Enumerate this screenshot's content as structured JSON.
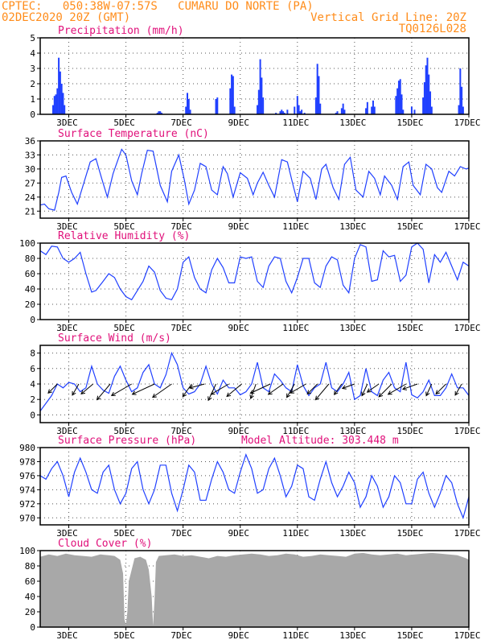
{
  "header": {
    "line1": "CPTEC:   050:38W-07:57S   CUMARU DO NORTE (PA)",
    "line2_left": "02DEC2020 20Z (GMT)",
    "line2_right": "Vertical Grid Line: 20Z",
    "line3_right": "TQ0126L028"
  },
  "colors": {
    "header": "#ff8c1a",
    "title": "#e0107a",
    "line": "#2040ff",
    "wind_arrow": "#000000",
    "cloud_fill": "#a8a8a8"
  },
  "x_axis": {
    "tick_labels": [
      "3DEC",
      "5DEC",
      "7DEC",
      "9DEC",
      "11DEC",
      "13DEC",
      "15DEC",
      "17DEC"
    ],
    "tick_days": [
      3,
      5,
      7,
      9,
      11,
      13,
      15,
      17
    ],
    "start_day": 2.0,
    "end_day": 17.0
  },
  "chart_data": [
    {
      "id": "precip",
      "type": "bar",
      "title": "Precipitation (mm/h)",
      "ylim": [
        0,
        5
      ],
      "yticks": [
        0,
        1,
        2,
        3,
        4,
        5
      ],
      "grid": true,
      "x": [
        2.45,
        2.5,
        2.55,
        2.6,
        2.65,
        2.7,
        2.75,
        2.8,
        2.85,
        6.1,
        6.15,
        6.2,
        6.25,
        7.1,
        7.15,
        7.2,
        7.25,
        8.15,
        8.2,
        8.65,
        8.7,
        8.75,
        8.8,
        9.6,
        9.65,
        9.7,
        9.75,
        9.8,
        10.25,
        10.4,
        10.45,
        10.5,
        10.55,
        10.65,
        10.9,
        11.0,
        11.05,
        11.1,
        11.15,
        11.25,
        11.65,
        11.7,
        11.75,
        11.8,
        12.35,
        12.4,
        12.55,
        12.6,
        12.65,
        13.4,
        13.45,
        13.6,
        13.65,
        13.7,
        14.45,
        14.5,
        14.55,
        14.6,
        14.65,
        14.7,
        15.0,
        15.1,
        15.4,
        15.45,
        15.5,
        15.55,
        15.6,
        15.65,
        15.7,
        16.65,
        16.7,
        16.75,
        16.8
      ],
      "values": [
        0.6,
        1.2,
        1.3,
        1.7,
        3.7,
        2.8,
        2.0,
        1.4,
        0.6,
        0.1,
        0.2,
        0.2,
        0.1,
        0.5,
        1.4,
        1.0,
        0.3,
        1.0,
        1.1,
        1.7,
        2.6,
        2.5,
        0.5,
        0.6,
        1.6,
        3.6,
        2.4,
        1.1,
        0.1,
        0.2,
        0.3,
        0.2,
        0.1,
        0.3,
        0.5,
        1.2,
        0.6,
        0.2,
        0.3,
        0.1,
        1.1,
        3.3,
        2.5,
        0.7,
        0.1,
        0.2,
        0.4,
        0.7,
        0.3,
        0.4,
        0.8,
        0.5,
        0.9,
        0.5,
        1.2,
        1.7,
        2.2,
        2.3,
        1.3,
        0.3,
        0.5,
        0.3,
        1.1,
        2.1,
        3.2,
        3.7,
        2.6,
        1.5,
        0.5,
        0.6,
        3.0,
        1.8,
        0.5
      ]
    },
    {
      "id": "temp",
      "type": "line",
      "title": "Surface Temperature (nC)",
      "ylim": [
        19.5,
        36
      ],
      "yticks": [
        21,
        24,
        27,
        30,
        33,
        36
      ],
      "grid": true,
      "x": [
        2.0,
        2.15,
        2.3,
        2.5,
        2.65,
        2.75,
        2.9,
        3.1,
        3.3,
        3.5,
        3.75,
        3.95,
        4.15,
        4.35,
        4.55,
        4.85,
        5.0,
        5.2,
        5.4,
        5.55,
        5.75,
        5.95,
        6.2,
        6.45,
        6.6,
        6.85,
        7.05,
        7.2,
        7.4,
        7.6,
        7.8,
        8.0,
        8.2,
        8.4,
        8.55,
        8.75,
        9.0,
        9.25,
        9.45,
        9.6,
        9.8,
        10.0,
        10.2,
        10.45,
        10.65,
        10.85,
        11.0,
        11.2,
        11.45,
        11.65,
        11.85,
        12.0,
        12.25,
        12.45,
        12.65,
        12.85,
        13.05,
        13.3,
        13.5,
        13.7,
        13.9,
        14.05,
        14.3,
        14.5,
        14.7,
        14.9,
        15.05,
        15.3,
        15.5,
        15.7,
        15.9,
        16.05,
        16.3,
        16.5,
        16.7,
        16.9,
        17.0
      ],
      "values": [
        22.3,
        22.5,
        21.5,
        21.2,
        25.0,
        28.2,
        28.5,
        25.0,
        22.5,
        26.5,
        31.5,
        32.2,
        28.0,
        24.0,
        29.0,
        34.2,
        33.0,
        27.5,
        24.5,
        29.0,
        34.0,
        33.8,
        26.5,
        23.0,
        29.5,
        33.0,
        27.5,
        22.5,
        25.5,
        31.2,
        30.5,
        25.5,
        24.5,
        30.5,
        29.0,
        24.0,
        29.2,
        28.0,
        24.5,
        27.0,
        29.3,
        26.5,
        24.0,
        32.0,
        31.5,
        26.5,
        23.0,
        29.5,
        28.0,
        23.5,
        30.0,
        31.0,
        26.0,
        23.5,
        31.0,
        32.5,
        25.5,
        24.0,
        29.5,
        28.0,
        24.5,
        28.5,
        26.5,
        23.5,
        30.5,
        31.5,
        26.5,
        24.5,
        31.0,
        30.0,
        26.0,
        25.0,
        29.5,
        28.5,
        30.5,
        30.0,
        30.2
      ]
    },
    {
      "id": "rh",
      "type": "line",
      "title": "Relative Humidity (%)",
      "ylim": [
        0,
        100
      ],
      "yticks": [
        0,
        20,
        40,
        60,
        80,
        100
      ],
      "grid": true,
      "x": [
        2.0,
        2.2,
        2.4,
        2.6,
        2.8,
        3.0,
        3.2,
        3.4,
        3.6,
        3.8,
        3.95,
        4.2,
        4.4,
        4.6,
        4.8,
        5.0,
        5.2,
        5.4,
        5.6,
        5.8,
        6.0,
        6.2,
        6.4,
        6.6,
        6.8,
        7.0,
        7.2,
        7.4,
        7.6,
        7.8,
        8.0,
        8.2,
        8.4,
        8.6,
        8.8,
        9.0,
        9.2,
        9.4,
        9.6,
        9.8,
        10.0,
        10.2,
        10.4,
        10.6,
        10.8,
        11.0,
        11.2,
        11.4,
        11.6,
        11.8,
        12.0,
        12.2,
        12.4,
        12.6,
        12.8,
        13.0,
        13.2,
        13.4,
        13.6,
        13.8,
        14.0,
        14.2,
        14.4,
        14.6,
        14.8,
        15.0,
        15.2,
        15.4,
        15.6,
        15.8,
        16.0,
        16.2,
        16.4,
        16.6,
        16.8,
        17.0
      ],
      "values": [
        90,
        85,
        96,
        95,
        80,
        75,
        80,
        88,
        60,
        36,
        38,
        50,
        60,
        55,
        40,
        30,
        26,
        38,
        50,
        70,
        62,
        38,
        28,
        26,
        40,
        75,
        82,
        55,
        40,
        35,
        65,
        80,
        68,
        48,
        48,
        82,
        80,
        82,
        50,
        42,
        70,
        82,
        80,
        50,
        35,
        55,
        80,
        80,
        48,
        42,
        70,
        82,
        78,
        45,
        35,
        80,
        98,
        95,
        50,
        52,
        90,
        82,
        84,
        50,
        58,
        95,
        100,
        92,
        48,
        85,
        75,
        88,
        70,
        52,
        75,
        70
      ]
    },
    {
      "id": "wind",
      "type": "line",
      "title": "Surface Wind (m/s)",
      "ylim": [
        -1,
        9
      ],
      "yticks": [
        0,
        2,
        4,
        6,
        8
      ],
      "grid": true,
      "x": [
        2.0,
        2.2,
        2.4,
        2.6,
        2.8,
        3.0,
        3.2,
        3.4,
        3.6,
        3.8,
        4.0,
        4.2,
        4.4,
        4.6,
        4.8,
        5.0,
        5.2,
        5.4,
        5.6,
        5.8,
        6.0,
        6.2,
        6.4,
        6.6,
        6.8,
        7.0,
        7.2,
        7.4,
        7.6,
        7.8,
        8.0,
        8.2,
        8.4,
        8.6,
        8.8,
        9.0,
        9.2,
        9.4,
        9.6,
        9.8,
        10.0,
        10.2,
        10.4,
        10.6,
        10.8,
        11.0,
        11.2,
        11.4,
        11.6,
        11.8,
        12.0,
        12.2,
        12.4,
        12.6,
        12.8,
        13.0,
        13.2,
        13.4,
        13.6,
        13.8,
        14.0,
        14.2,
        14.4,
        14.6,
        14.8,
        15.0,
        15.2,
        15.4,
        15.6,
        15.8,
        16.0,
        16.2,
        16.4,
        16.6,
        16.8,
        17.0
      ],
      "values": [
        0.5,
        1.5,
        2.5,
        4.0,
        3.5,
        4.2,
        4.0,
        3.0,
        3.5,
        6.3,
        4.0,
        3.2,
        2.8,
        5.0,
        6.3,
        4.5,
        3.0,
        3.5,
        5.5,
        6.5,
        4.0,
        3.5,
        5.2,
        8.0,
        6.5,
        3.5,
        2.7,
        3.0,
        4.0,
        6.3,
        4.0,
        2.7,
        4.5,
        3.5,
        3.5,
        2.6,
        3.0,
        4.0,
        6.8,
        3.5,
        3.0,
        5.3,
        4.5,
        3.5,
        3.0,
        6.5,
        3.8,
        2.5,
        3.5,
        4.0,
        6.8,
        3.5,
        3.0,
        4.0,
        5.5,
        2.0,
        2.5,
        6.0,
        3.0,
        2.5,
        4.5,
        5.5,
        3.5,
        3.0,
        6.8,
        2.6,
        2.2,
        3.0,
        4.5,
        2.5,
        2.5,
        3.5,
        5.3,
        3.5,
        3.5,
        2.5
      ],
      "arrow_x": [
        2.6,
        3.35,
        3.85,
        4.45,
        5.2,
        6.0,
        6.6,
        7.3,
        7.75,
        8.15,
        8.6,
        9.05,
        9.55,
        10.05,
        10.5,
        10.9,
        11.3,
        11.7,
        12.1,
        12.55,
        13.0,
        13.45,
        13.85,
        14.3,
        14.8,
        15.2,
        15.7,
        16.2,
        16.75
      ],
      "arrow_dir": [
        45,
        60,
        40,
        50,
        30,
        25,
        35,
        55,
        15,
        65,
        30,
        40,
        70,
        25,
        35,
        60,
        30,
        45,
        50,
        55,
        20,
        65,
        35,
        45,
        30,
        20,
        65,
        45,
        60
      ],
      "arrow_len": [
        0.5,
        0.5,
        0.6,
        0.8,
        0.9,
        0.95,
        0.9,
        0.6,
        0.6,
        0.7,
        0.8,
        0.75,
        0.6,
        0.85,
        0.7,
        0.6,
        0.7,
        0.55,
        0.8,
        0.5,
        0.5,
        0.5,
        0.55,
        0.7,
        0.8,
        0.6,
        0.5,
        0.55,
        0.5
      ]
    },
    {
      "id": "pressure",
      "type": "line",
      "title": "Surface Pressure (hPa)",
      "annotation": "Model Altitude: 303.448 m",
      "ylim": [
        969,
        980
      ],
      "yticks": [
        970,
        972,
        974,
        976,
        978,
        980
      ],
      "grid": true,
      "x": [
        2.0,
        2.2,
        2.4,
        2.6,
        2.8,
        3.0,
        3.2,
        3.4,
        3.6,
        3.8,
        4.0,
        4.2,
        4.4,
        4.6,
        4.8,
        5.0,
        5.2,
        5.4,
        5.6,
        5.8,
        6.0,
        6.2,
        6.4,
        6.6,
        6.8,
        7.0,
        7.2,
        7.4,
        7.6,
        7.8,
        8.0,
        8.2,
        8.4,
        8.6,
        8.8,
        9.0,
        9.2,
        9.4,
        9.6,
        9.8,
        10.0,
        10.2,
        10.4,
        10.6,
        10.8,
        11.0,
        11.2,
        11.4,
        11.6,
        11.8,
        12.0,
        12.2,
        12.4,
        12.6,
        12.8,
        13.0,
        13.2,
        13.4,
        13.6,
        13.8,
        14.0,
        14.2,
        14.4,
        14.6,
        14.8,
        15.0,
        15.2,
        15.4,
        15.6,
        15.8,
        16.0,
        16.2,
        16.4,
        16.6,
        16.8,
        17.0
      ],
      "values": [
        976.0,
        975.5,
        977.0,
        978.0,
        976.0,
        973.0,
        976.5,
        978.5,
        976.5,
        974.0,
        973.5,
        976.5,
        977.5,
        974.0,
        972.0,
        973.5,
        977.0,
        978.0,
        974.0,
        972.0,
        974.0,
        977.5,
        977.5,
        973.5,
        971.0,
        974.0,
        977.5,
        976.5,
        972.5,
        972.5,
        975.5,
        978.0,
        976.5,
        974.0,
        973.5,
        976.5,
        979.0,
        977.0,
        973.5,
        974.0,
        977.0,
        978.5,
        976.0,
        973.0,
        974.5,
        977.5,
        977.0,
        973.0,
        972.5,
        975.5,
        978.0,
        975.0,
        973.0,
        974.5,
        976.5,
        975.0,
        971.5,
        973.0,
        976.0,
        974.5,
        971.5,
        973.0,
        976.0,
        975.0,
        972.0,
        972.0,
        975.5,
        976.5,
        973.5,
        971.5,
        973.5,
        976.0,
        975.0,
        972.0,
        970.0,
        973.0
      ]
    },
    {
      "id": "cloud",
      "type": "area",
      "title": "Cloud Cover (%)",
      "ylim": [
        0,
        100
      ],
      "yticks": [
        0,
        20,
        40,
        60,
        80,
        100
      ],
      "grid": true,
      "x": [
        2.0,
        2.3,
        2.6,
        2.9,
        3.2,
        3.5,
        3.8,
        4.1,
        4.4,
        4.6,
        4.8,
        4.9,
        4.95,
        5.0,
        5.05,
        5.1,
        5.3,
        5.5,
        5.7,
        5.8,
        5.9,
        5.95,
        6.0,
        6.05,
        6.15,
        6.4,
        6.7,
        7.0,
        7.3,
        7.6,
        7.9,
        8.2,
        8.5,
        8.8,
        9.1,
        9.4,
        9.7,
        10.0,
        10.3,
        10.6,
        10.9,
        11.2,
        11.5,
        11.8,
        12.1,
        12.4,
        12.7,
        13.0,
        13.3,
        13.6,
        13.9,
        14.2,
        14.5,
        14.8,
        15.1,
        15.4,
        15.7,
        16.0,
        16.3,
        16.6,
        16.9,
        17.0
      ],
      "values": [
        92,
        95,
        93,
        96,
        94,
        93,
        92,
        95,
        94,
        93,
        88,
        70,
        10,
        3,
        20,
        60,
        90,
        92,
        88,
        75,
        40,
        2,
        35,
        85,
        93,
        94,
        95,
        93,
        94,
        92,
        90,
        93,
        92,
        94,
        95,
        96,
        95,
        93,
        94,
        96,
        95,
        92,
        93,
        95,
        94,
        93,
        92,
        96,
        97,
        95,
        94,
        95,
        96,
        94,
        95,
        96,
        97,
        96,
        95,
        94,
        90,
        88
      ]
    }
  ]
}
